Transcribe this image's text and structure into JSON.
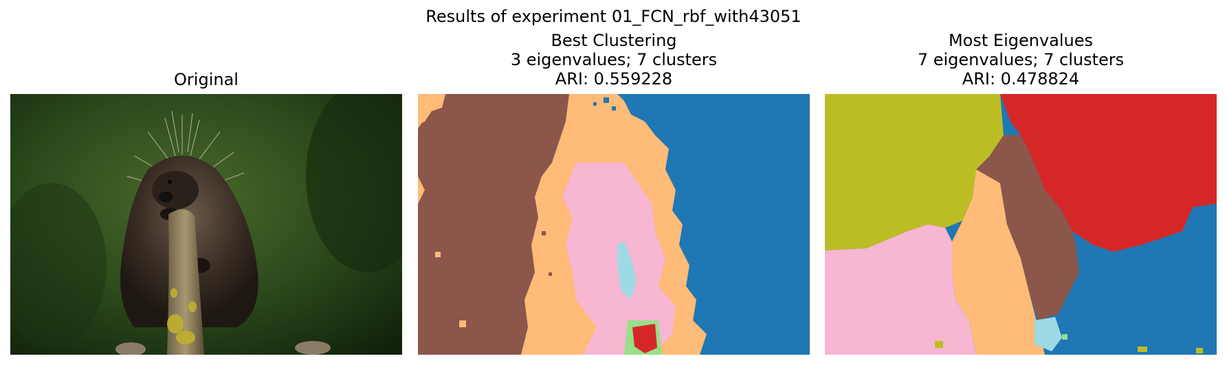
{
  "figure": {
    "suptitle": "Results of experiment 01_FCN_rbf_with43051"
  },
  "panels": [
    {
      "title": [
        "Original"
      ]
    },
    {
      "title": [
        "Best Clustering",
        "3 eigenvalues; 7 clusters",
        "ARI: 0.559228"
      ]
    },
    {
      "title": [
        "Most Eigenvalues",
        "7 eigenvalues; 7 clusters",
        "ARI: 0.478824"
      ]
    }
  ],
  "colors": {
    "brown": "#8c564b",
    "orange_light": "#ffbb78",
    "blue": "#1f77b4",
    "pink": "#f7b6d2",
    "cyan_light": "#9edae5",
    "red": "#d62728",
    "olive": "#bcbd22",
    "green_light": "#98df8a"
  }
}
